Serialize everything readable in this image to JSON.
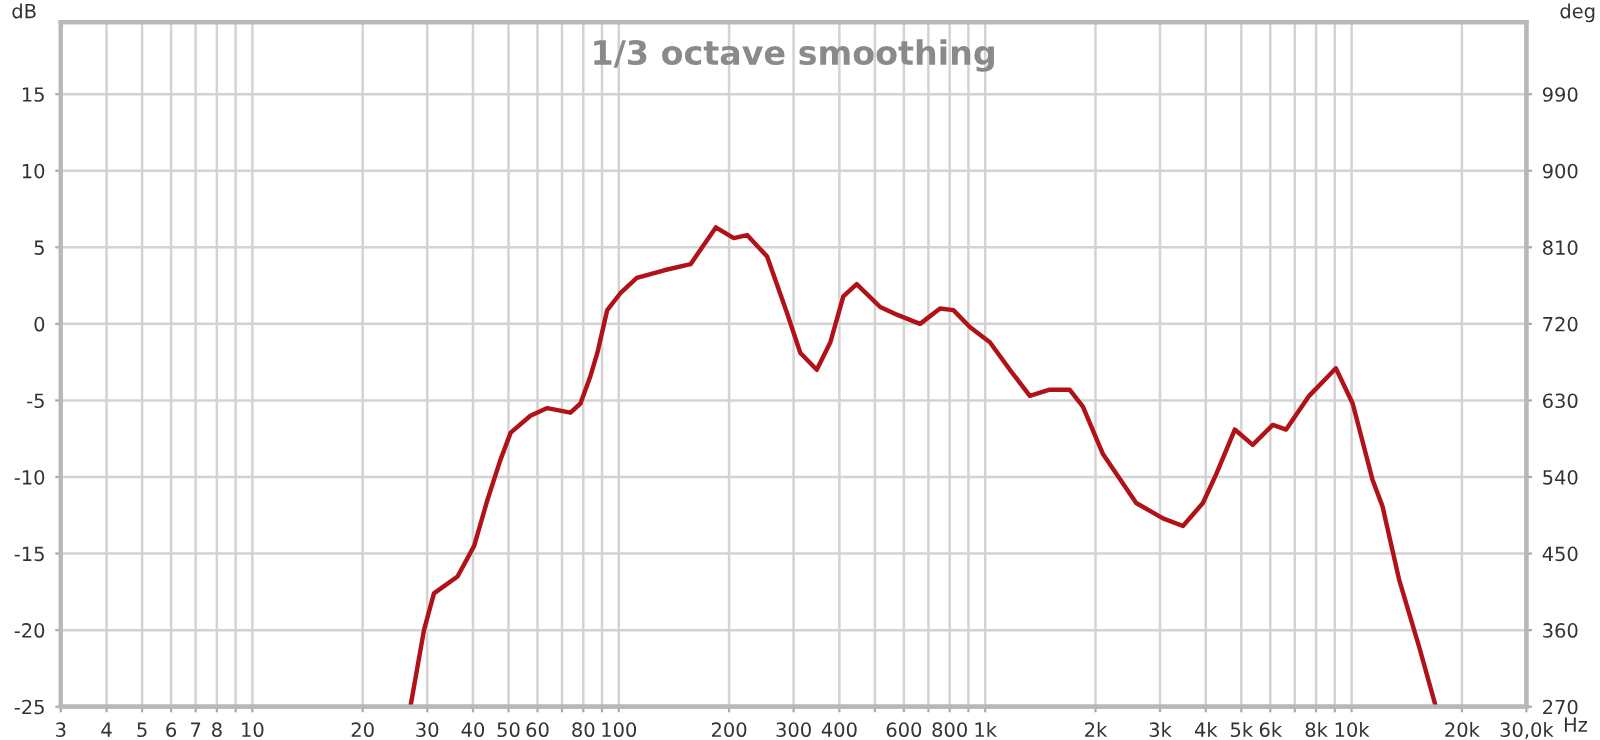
{
  "chart_data": {
    "type": "line",
    "title": "1/3 octave smoothing",
    "xlabel": "Hz",
    "ylabel": "dB",
    "y2label": "deg",
    "log": "x",
    "grid": true,
    "x": [
      27,
      29.4,
      31.3,
      36.3,
      40.3,
      43.8,
      47.5,
      50.7,
      57.4,
      63.8,
      73.8,
      78.6,
      83.7,
      87.4,
      93,
      101,
      112,
      133,
      157,
      184,
      206,
      224,
      254,
      288,
      313,
      347,
      378,
      410,
      446,
      517,
      574,
      664,
      753,
      819,
      908,
      1030,
      1168,
      1324,
      1500,
      1700,
      1848,
      2096,
      2583,
      3057,
      3465,
      3929,
      4275,
      4800,
      5372,
      6095,
      6627,
      7660,
      9059,
      10070,
      11410,
      12140,
      13480,
      15290,
      16980
    ],
    "series": [
      {
        "color": "#b01218",
        "values": [
          -25,
          -20,
          -17.6,
          -16.5,
          -14.5,
          -11.5,
          -8.9,
          -7.1,
          -6,
          -5.5,
          -5.8,
          -5.2,
          -3.4,
          -1.9,
          0.9,
          2,
          3,
          3.5,
          3.9,
          6.3,
          5.6,
          5.8,
          4.4,
          0.7,
          -1.9,
          -3,
          -1.2,
          1.8,
          2.6,
          1.1,
          0.6,
          0,
          1,
          0.9,
          -0.2,
          -1.2,
          -3,
          -4.7,
          -4.3,
          -4.3,
          -5.4,
          -8.5,
          -11.7,
          -12.7,
          -13.2,
          -11.7,
          -9.8,
          -6.9,
          -7.9,
          -6.6,
          -6.9,
          -4.7,
          -2.9,
          -5.2,
          -10.2,
          -11.9,
          -16.7,
          -21.1,
          -25
        ]
      }
    ],
    "xlim": [
      3,
      30000
    ],
    "ylim": [
      -25,
      19.7
    ],
    "y2lim": [
      270,
      1074.6
    ],
    "xticks": [
      3,
      4,
      5,
      6,
      7,
      8,
      {
        "value": 9,
        "label": null
      },
      10,
      20,
      30,
      40,
      50,
      60,
      {
        "value": 70,
        "label": null
      },
      80,
      {
        "value": 90,
        "label": null
      },
      100,
      200,
      300,
      400,
      {
        "value": 500,
        "label": null
      },
      600,
      {
        "value": 700,
        "label": null
      },
      800,
      {
        "value": 900,
        "label": null
      },
      {
        "value": 1000,
        "label": "1k"
      },
      {
        "value": 2000,
        "label": "2k"
      },
      {
        "value": 3000,
        "label": "3k"
      },
      {
        "value": 4000,
        "label": "4k"
      },
      {
        "value": 5000,
        "label": "5k"
      },
      {
        "value": 6000,
        "label": "6k"
      },
      {
        "value": 7000,
        "label": null
      },
      {
        "value": 8000,
        "label": "8k"
      },
      {
        "value": 9000,
        "label": null
      },
      {
        "value": 10000,
        "label": "10k"
      },
      {
        "value": 20000,
        "label": "20k"
      },
      {
        "value": 30000,
        "label": "30,0k"
      }
    ],
    "yticks": [
      -25,
      -20,
      -15,
      -10,
      -5,
      0,
      5,
      10,
      15
    ],
    "y2ticks": [
      270,
      360,
      450,
      540,
      630,
      720,
      810,
      900,
      990
    ]
  }
}
